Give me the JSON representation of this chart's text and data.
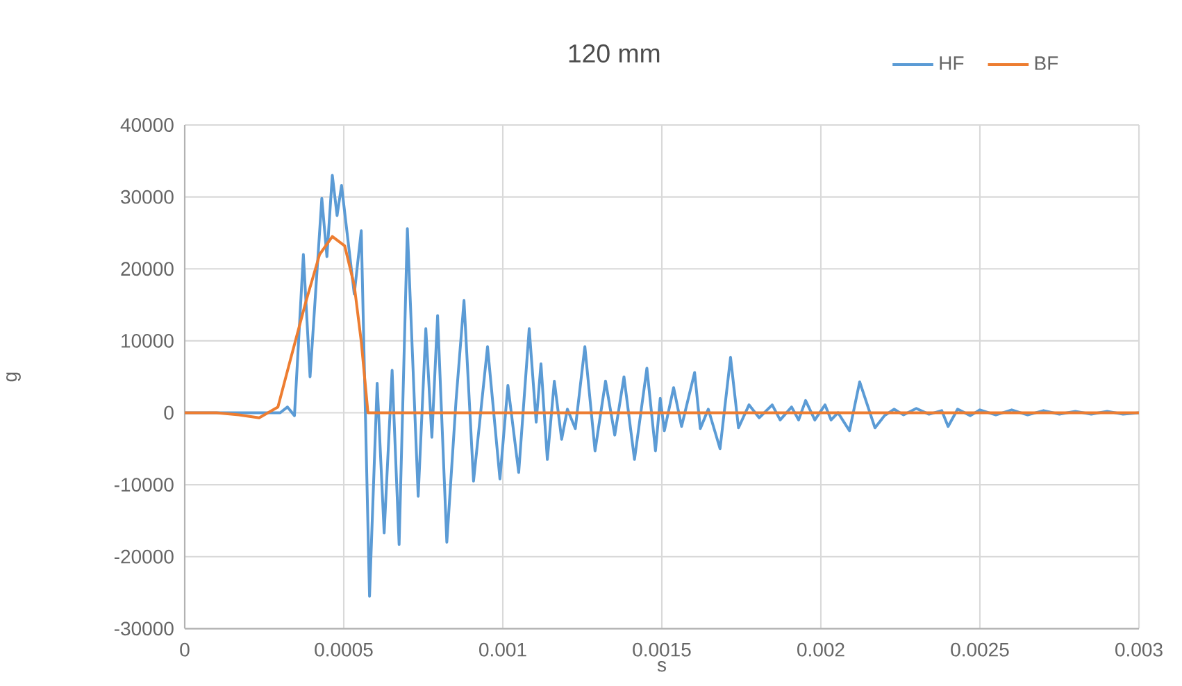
{
  "chart_data": {
    "type": "line",
    "title": "120 mm",
    "xlabel": "s",
    "ylabel": "g",
    "xlim": [
      0,
      0.003
    ],
    "xticks": [
      0,
      0.0005,
      0.001,
      0.0015,
      0.002,
      0.0025,
      0.003
    ],
    "ylim": [
      -30000,
      40000
    ],
    "yticks": [
      -30000,
      -20000,
      -10000,
      0,
      10000,
      20000,
      30000,
      40000
    ],
    "grid": true,
    "legend": "top right",
    "line_style": "solid",
    "series": [
      {
        "name": "HF",
        "color": "#5b9bd5",
        "x": [
          0,
          0.0003,
          0.000323,
          0.000345,
          0.000373,
          0.000394,
          0.000431,
          0.000447,
          0.000464,
          0.000479,
          0.000493,
          0.000533,
          0.000555,
          0.000581,
          0.000605,
          0.000627,
          0.000652,
          0.000674,
          0.0007,
          0.000734,
          0.000758,
          0.000777,
          0.000795,
          0.000824,
          0.000853,
          0.000878,
          0.000908,
          0.000952,
          0.000991,
          0.001016,
          0.00105,
          0.001083,
          0.001105,
          0.00112,
          0.00114,
          0.001162,
          0.001185,
          0.001203,
          0.001228,
          0.001258,
          0.00129,
          0.001323,
          0.001352,
          0.001381,
          0.001414,
          0.001453,
          0.00148,
          0.001495,
          0.001508,
          0.001537,
          0.001562,
          0.001603,
          0.001621,
          0.001646,
          0.001683,
          0.001716,
          0.001741,
          0.001774,
          0.001806,
          0.001847,
          0.001872,
          0.001908,
          0.00193,
          0.001952,
          0.001981,
          0.002013,
          0.002032,
          0.002054,
          0.00209,
          0.002122,
          0.00217,
          0.0022,
          0.00223,
          0.00226,
          0.0023,
          0.00234,
          0.00238,
          0.0024,
          0.00243,
          0.00247,
          0.0025,
          0.00255,
          0.0026,
          0.00265,
          0.0027,
          0.00275,
          0.0028,
          0.00285,
          0.0029,
          0.00295,
          0.003
        ],
        "values": [
          0,
          0,
          800,
          -400,
          22000,
          5000,
          29800,
          21700,
          33000,
          27400,
          31600,
          16500,
          25300,
          -25500,
          4100,
          -16700,
          5900,
          -18300,
          25600,
          -11600,
          11700,
          -3400,
          13500,
          -18000,
          1700,
          15600,
          -9500,
          9200,
          -9200,
          3800,
          -8300,
          11700,
          -1300,
          6800,
          -6500,
          4400,
          -3700,
          500,
          -2200,
          9200,
          -5300,
          4400,
          -3100,
          5000,
          -6500,
          6200,
          -5300,
          2000,
          -2500,
          3500,
          -1900,
          5600,
          -2200,
          500,
          -5000,
          7700,
          -2100,
          1100,
          -700,
          1100,
          -1000,
          800,
          -1000,
          1700,
          -1000,
          1100,
          -1000,
          0,
          -2500,
          4300,
          -2100,
          -400,
          500,
          -300,
          600,
          -200,
          300,
          -1900,
          500,
          -400,
          400,
          -300,
          400,
          -300,
          300,
          -200,
          200,
          -200,
          200,
          -200,
          0
        ]
      },
      {
        "name": "BF",
        "color": "#ed7d31",
        "x": [
          0,
          0.0001,
          0.00017,
          0.000234,
          0.000293,
          0.000336,
          0.00038,
          0.000424,
          0.000464,
          0.000503,
          0.000533,
          0.000555,
          0.000576,
          0.003
        ],
        "values": [
          0,
          0,
          -300,
          -700,
          800,
          8000,
          15300,
          22000,
          24500,
          23200,
          17700,
          9900,
          0,
          0
        ]
      }
    ]
  }
}
